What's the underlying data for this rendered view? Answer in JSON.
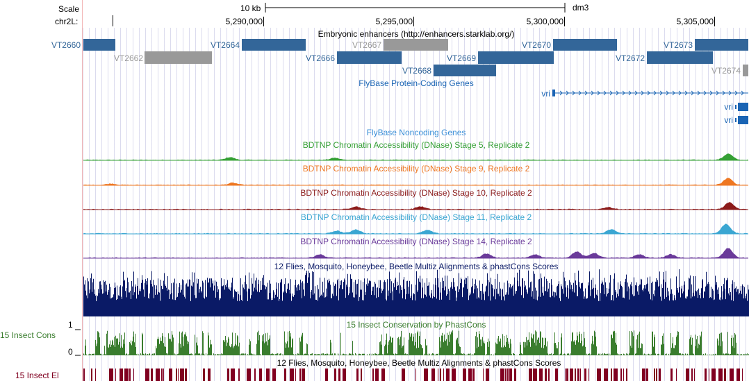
{
  "ruler": {
    "scale_label": "Scale",
    "scale_bar_label": "10 kb",
    "assembly": "dm3",
    "chrom_label": "chr2L:",
    "positions": [
      "5,290,000",
      "5,295,000",
      "5,300,000",
      "5,305,000"
    ]
  },
  "tracks": {
    "enhancers": {
      "title": "Embryonic enhancers (http://enhancers.starklab.org/)",
      "color_active": "#336699",
      "color_inactive": "#999999",
      "items": [
        {
          "name": "VT2660",
          "status": "active"
        },
        {
          "name": "VT2662",
          "status": "inactive"
        },
        {
          "name": "VT2664",
          "status": "active"
        },
        {
          "name": "VT2667",
          "status": "inactive"
        },
        {
          "name": "VT2666",
          "status": "active"
        },
        {
          "name": "VT2669",
          "status": "active"
        },
        {
          "name": "VT2670",
          "status": "active"
        },
        {
          "name": "VT2668",
          "status": "active"
        },
        {
          "name": "VT2673",
          "status": "active"
        },
        {
          "name": "VT2672",
          "status": "active"
        },
        {
          "name": "VT2674",
          "status": "inactive"
        }
      ]
    },
    "coding_genes": {
      "title": "FlyBase Protein-Coding Genes",
      "color": "#1a64b4",
      "genes": [
        "vri",
        "vri",
        "vri"
      ]
    },
    "noncoding_genes": {
      "title": "FlyBase Noncoding Genes",
      "color": "#3a8fd8"
    },
    "dnase": [
      {
        "title": "BDTNP Chromatin Accessibility (DNase) Stage 5, Replicate 2",
        "color": "#35a035"
      },
      {
        "title": "BDTNP Chromatin Accessibility (DNase) Stage 9, Replicate 2",
        "color": "#ee7722"
      },
      {
        "title": "BDTNP Chromatin Accessibility (DNase) Stage 10, Replicate 2",
        "color": "#8b1a1a"
      },
      {
        "title": "BDTNP Chromatin Accessibility (DNase) Stage 11, Replicate 2",
        "color": "#3aa6d2"
      },
      {
        "title": "BDTNP Chromatin Accessibility (DNase) Stage 14, Replicate 2",
        "color": "#6a3a9a"
      }
    ],
    "multiz": {
      "title": "12 Flies, Mosquito, Honeybee, Beetle Multiz Alignments & phastCons Scores",
      "color": "#0a1a66"
    },
    "insect_cons": {
      "title": "15 Insect Conservation by PhastCons",
      "side_label": "15 Insect Cons",
      "y_max": "1",
      "y_min": "0",
      "color": "#3a7d2e"
    },
    "insect_el": {
      "title": "12 Flies, Mosquito, Honeybee, Beetle Multiz Alignments & phastCons Scores",
      "side_label": "15 Insect El",
      "color": "#800020"
    }
  }
}
